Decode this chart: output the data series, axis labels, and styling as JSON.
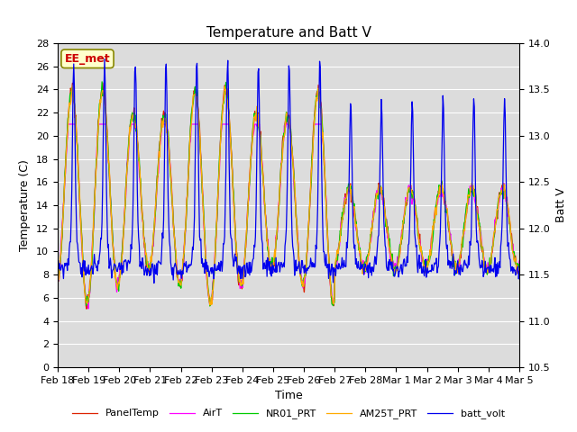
{
  "title": "Temperature and Batt V",
  "xlabel": "Time",
  "ylabel_left": "Temperature (C)",
  "ylabel_right": "Batt V",
  "ylim_left": [
    0,
    28
  ],
  "ylim_right": [
    10.5,
    14.0
  ],
  "label_text": "EE_met",
  "xtick_labels": [
    "Feb 18",
    "Feb 19",
    "Feb 20",
    "Feb 21",
    "Feb 22",
    "Feb 23",
    "Feb 24",
    "Feb 25",
    "Feb 26",
    "Feb 27",
    "Feb 28",
    "Mar 1",
    "Mar 2",
    "Mar 3",
    "Mar 4",
    "Mar 5"
  ],
  "series_colors": {
    "PanelTemp": "#dd2200",
    "AirT": "#ff00ff",
    "NR01_PRT": "#00cc00",
    "AM25T_PRT": "#ffaa00",
    "batt_volt": "#0000ee"
  },
  "fig_bg_color": "#ffffff",
  "plot_bg_color": "#dcdcdc",
  "grid_color": "#ffffff",
  "title_fontsize": 11,
  "axis_fontsize": 9,
  "tick_fontsize": 8,
  "n_days": 15,
  "yticks_left": [
    0,
    2,
    4,
    6,
    8,
    10,
    12,
    14,
    16,
    18,
    20,
    22,
    24,
    26,
    28
  ],
  "yticks_right": [
    10.5,
    11.0,
    11.5,
    12.0,
    12.5,
    13.0,
    13.5,
    14.0
  ]
}
